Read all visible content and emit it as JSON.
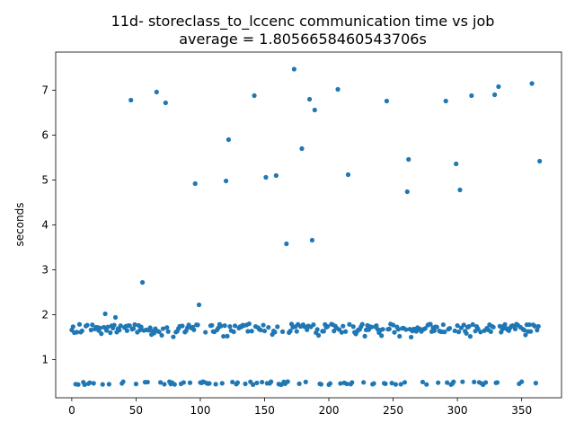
{
  "chart_data": {
    "type": "scatter",
    "title_line1": "11d- storeclass_to_lccenc communication time vs job",
    "title_line2": "average = 1.8056658460543706s",
    "xlabel": "",
    "ylabel": "seconds",
    "xlim": [
      -12.5,
      381
    ],
    "ylim": [
      0.15,
      7.85
    ],
    "xticks": [
      0,
      50,
      100,
      150,
      200,
      250,
      300,
      350
    ],
    "yticks": [
      1,
      2,
      3,
      4,
      5,
      6,
      7
    ],
    "grid": false,
    "point_color": "#1f77b4",
    "x_range": [
      0,
      364
    ],
    "outliers": [
      {
        "x": 26,
        "y": 2.02
      },
      {
        "x": 34,
        "y": 1.94
      },
      {
        "x": 46,
        "y": 6.78
      },
      {
        "x": 55,
        "y": 2.72
      },
      {
        "x": 66,
        "y": 6.96
      },
      {
        "x": 73,
        "y": 6.72
      },
      {
        "x": 96,
        "y": 4.92
      },
      {
        "x": 99,
        "y": 2.22
      },
      {
        "x": 120,
        "y": 4.98
      },
      {
        "x": 122,
        "y": 5.9
      },
      {
        "x": 142,
        "y": 6.88
      },
      {
        "x": 151,
        "y": 5.06
      },
      {
        "x": 159,
        "y": 5.1
      },
      {
        "x": 167,
        "y": 3.58
      },
      {
        "x": 173,
        "y": 7.47
      },
      {
        "x": 179,
        "y": 5.7
      },
      {
        "x": 185,
        "y": 6.8
      },
      {
        "x": 187,
        "y": 3.66
      },
      {
        "x": 189,
        "y": 6.56
      },
      {
        "x": 207,
        "y": 7.02
      },
      {
        "x": 215,
        "y": 5.12
      },
      {
        "x": 245,
        "y": 6.76
      },
      {
        "x": 261,
        "y": 4.74
      },
      {
        "x": 262,
        "y": 5.46
      },
      {
        "x": 291,
        "y": 6.76
      },
      {
        "x": 299,
        "y": 5.36
      },
      {
        "x": 302,
        "y": 4.78
      },
      {
        "x": 311,
        "y": 6.88
      },
      {
        "x": 329,
        "y": 6.9
      },
      {
        "x": 332,
        "y": 7.08
      },
      {
        "x": 358,
        "y": 7.15
      },
      {
        "x": 364,
        "y": 5.42
      }
    ]
  }
}
